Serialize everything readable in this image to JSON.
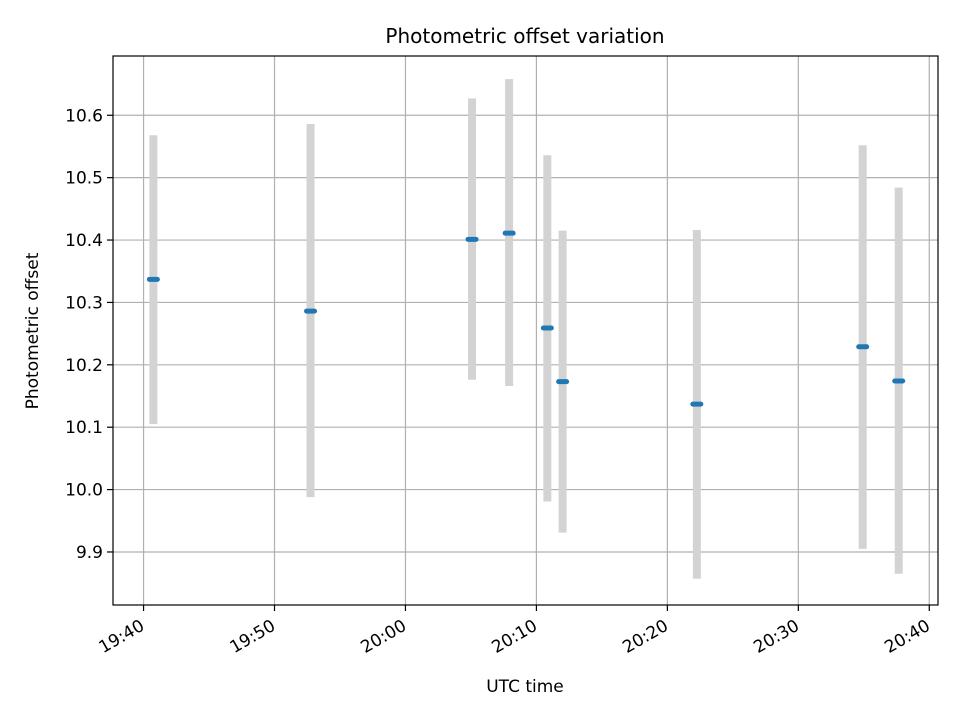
{
  "chart_data": {
    "type": "scatter",
    "title": "Photometric offset variation",
    "xlabel": "UTC time",
    "ylabel": "Photometric offset",
    "grid": true,
    "xlim": [
      "19:37:40",
      "20:40:40"
    ],
    "ylim": [
      9.815,
      10.695
    ],
    "x_ticks": [
      "19:40",
      "19:50",
      "20:00",
      "20:10",
      "20:20",
      "20:30",
      "20:40"
    ],
    "y_ticks": [
      "9.9",
      "10.0",
      "10.1",
      "10.2",
      "10.3",
      "10.4",
      "10.5",
      "10.6"
    ],
    "colors": {
      "point": "#1f77b4",
      "errorbar": "#d3d3d3",
      "grid": "#b0b0b0"
    },
    "points": [
      {
        "time": "19:40:45",
        "value": 10.337,
        "low": 10.105,
        "high": 10.568
      },
      {
        "time": "19:52:45",
        "value": 10.286,
        "low": 9.988,
        "high": 10.586
      },
      {
        "time": "20:05:05",
        "value": 10.401,
        "low": 10.176,
        "high": 10.627
      },
      {
        "time": "20:07:55",
        "value": 10.411,
        "low": 10.166,
        "high": 10.658
      },
      {
        "time": "20:10:50",
        "value": 10.259,
        "low": 9.981,
        "high": 10.536
      },
      {
        "time": "20:12:00",
        "value": 10.173,
        "low": 9.931,
        "high": 10.415
      },
      {
        "time": "20:22:15",
        "value": 10.137,
        "low": 9.857,
        "high": 10.416
      },
      {
        "time": "20:34:55",
        "value": 10.229,
        "low": 9.905,
        "high": 10.552
      },
      {
        "time": "20:37:40",
        "value": 10.174,
        "low": 9.865,
        "high": 10.484
      }
    ]
  }
}
